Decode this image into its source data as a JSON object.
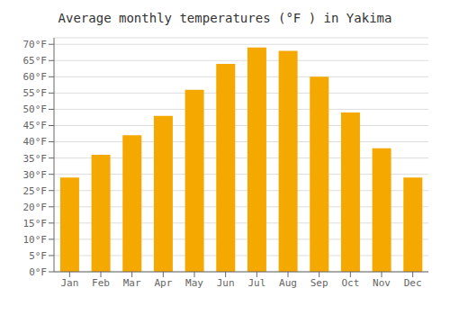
{
  "chart_data": {
    "type": "bar",
    "title": "Average monthly temperatures (°F ) in Yakima",
    "categories": [
      "Jan",
      "Feb",
      "Mar",
      "Apr",
      "May",
      "Jun",
      "Jul",
      "Aug",
      "Sep",
      "Oct",
      "Nov",
      "Dec"
    ],
    "values": [
      29,
      36,
      42,
      48,
      56,
      64,
      69,
      68,
      60,
      49,
      38,
      29
    ],
    "color": "#F5A800",
    "ylim": [
      0,
      72
    ],
    "yticks": [
      {
        "value": 0,
        "label": "0°F"
      },
      {
        "value": 5,
        "label": "5°F"
      },
      {
        "value": 10,
        "label": "10°F"
      },
      {
        "value": 15,
        "label": "15°F"
      },
      {
        "value": 20,
        "label": "20°F"
      },
      {
        "value": 25,
        "label": "25°F"
      },
      {
        "value": 30,
        "label": "30°F"
      },
      {
        "value": 35,
        "label": "35°F"
      },
      {
        "value": 40,
        "label": "40°F"
      },
      {
        "value": 45,
        "label": "45°F"
      },
      {
        "value": 50,
        "label": "50°F"
      },
      {
        "value": 55,
        "label": "55°F"
      },
      {
        "value": 60,
        "label": "60°F"
      },
      {
        "value": 65,
        "label": "65°F"
      },
      {
        "value": 70,
        "label": "70°F"
      }
    ],
    "grid": true
  }
}
